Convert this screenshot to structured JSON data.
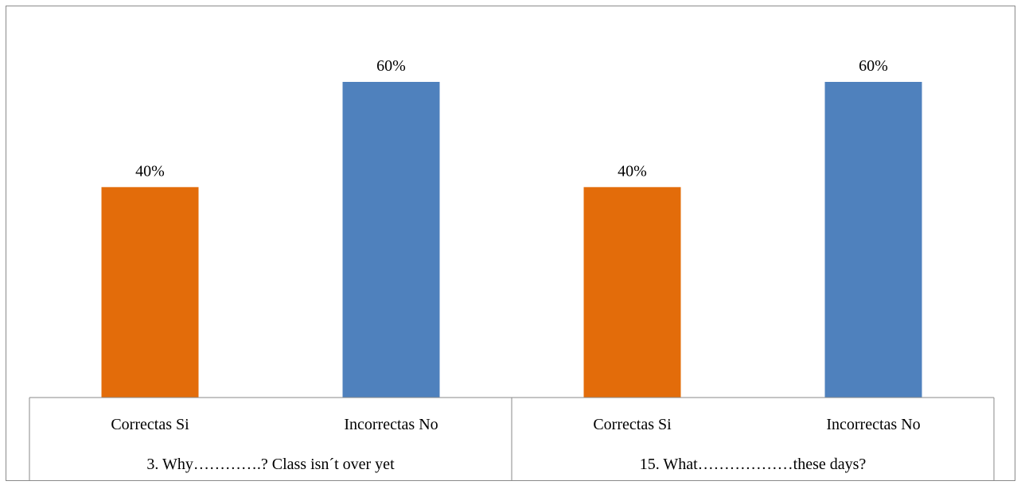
{
  "chart_data": {
    "type": "bar",
    "title": "",
    "ylim": [
      0,
      100
    ],
    "value_suffix": "%",
    "groups": [
      {
        "label": "3. Why………….? Class isn´t over yet",
        "bars": [
          {
            "label": "Correctas Si",
            "value": 40,
            "color": "#e36c0a"
          },
          {
            "label": "Incorrectas No",
            "value": 60,
            "color": "#4f81bd"
          }
        ]
      },
      {
        "label": "15. What………………these days?",
        "bars": [
          {
            "label": "Correctas Si",
            "value": 40,
            "color": "#e36c0a"
          },
          {
            "label": "Incorrectas No",
            "value": 60,
            "color": "#4f81bd"
          }
        ]
      }
    ]
  }
}
